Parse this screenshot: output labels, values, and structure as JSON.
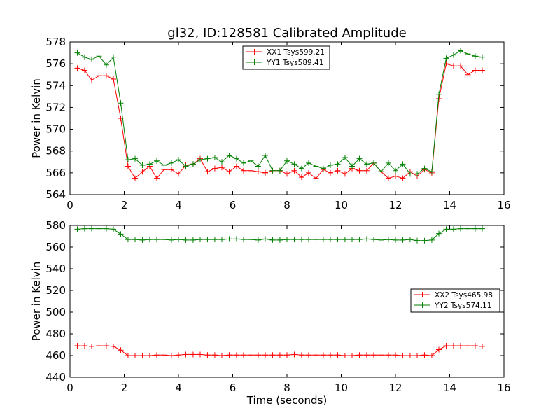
{
  "title": "gl32, ID:128581 Calibrated Amplitude",
  "colors": {
    "red": "#ff0000",
    "green": "#008000"
  },
  "chart_data": [
    {
      "type": "line",
      "ylabel": "Power in Kelvin",
      "xlabel": "",
      "xlim": [
        0,
        16
      ],
      "ylim": [
        564,
        578
      ],
      "xticks": [
        "0",
        "2",
        "4",
        "6",
        "8",
        "10",
        "12",
        "14",
        "16"
      ],
      "yticks": [
        "564",
        "566",
        "568",
        "570",
        "572",
        "574",
        "576",
        "578"
      ],
      "legend_position": "top-center",
      "x": [
        0.27,
        0.54,
        0.8,
        1.07,
        1.34,
        1.6,
        1.87,
        2.14,
        2.4,
        2.67,
        2.94,
        3.2,
        3.47,
        3.74,
        4.0,
        4.27,
        4.54,
        4.8,
        5.07,
        5.34,
        5.6,
        5.87,
        6.14,
        6.4,
        6.67,
        6.94,
        7.2,
        7.47,
        7.74,
        8.0,
        8.27,
        8.54,
        8.8,
        9.07,
        9.34,
        9.6,
        9.87,
        10.14,
        10.4,
        10.67,
        10.94,
        11.2,
        11.47,
        11.74,
        12.0,
        12.27,
        12.54,
        12.8,
        13.07,
        13.34,
        13.6,
        13.87,
        14.14,
        14.4,
        14.67,
        14.94,
        15.2
      ],
      "series": [
        {
          "name": "XX1 Tsys599.21",
          "color": "#ff0000",
          "values": [
            575.6,
            575.4,
            574.5,
            574.9,
            574.9,
            574.6,
            571.0,
            566.6,
            565.5,
            566.1,
            566.6,
            565.5,
            566.3,
            566.3,
            565.9,
            566.7,
            566.8,
            567.3,
            566.1,
            566.4,
            566.5,
            566.1,
            566.6,
            566.2,
            566.2,
            566.1,
            566.0,
            566.2,
            566.2,
            565.9,
            566.2,
            565.6,
            566.0,
            565.5,
            566.3,
            566.0,
            566.2,
            565.9,
            566.4,
            566.2,
            566.2,
            566.9,
            566.1,
            565.5,
            565.7,
            565.5,
            566.1,
            565.7,
            566.3,
            566.0,
            572.8,
            576.0,
            575.8,
            575.8,
            575.0,
            575.4,
            575.4
          ]
        },
        {
          "name": "YY1 Tsys589.41",
          "color": "#008000",
          "values": [
            577.0,
            576.6,
            576.4,
            576.7,
            575.9,
            576.6,
            572.4,
            567.2,
            567.3,
            566.7,
            566.8,
            567.1,
            566.7,
            566.9,
            567.2,
            566.6,
            566.8,
            567.2,
            567.3,
            567.4,
            567.0,
            567.6,
            567.3,
            566.9,
            567.1,
            566.6,
            567.6,
            566.2,
            566.2,
            567.1,
            566.8,
            566.4,
            566.9,
            566.6,
            566.4,
            566.7,
            566.8,
            567.4,
            566.6,
            567.3,
            566.8,
            566.9,
            566.1,
            566.9,
            566.2,
            566.8,
            565.9,
            565.9,
            566.4,
            566.1,
            573.2,
            576.5,
            576.8,
            577.2,
            576.9,
            576.7,
            576.6
          ]
        }
      ]
    },
    {
      "type": "line",
      "ylabel": "Power in Kelvin",
      "xlabel": "Time (seconds)",
      "xlim": [
        0,
        16
      ],
      "ylim": [
        440,
        580
      ],
      "xticks": [
        "0",
        "2",
        "4",
        "6",
        "8",
        "10",
        "12",
        "14",
        "16"
      ],
      "yticks": [
        "440",
        "460",
        "480",
        "500",
        "520",
        "540",
        "560",
        "580"
      ],
      "legend_position": "center-right",
      "x": [
        0.27,
        0.54,
        0.8,
        1.07,
        1.34,
        1.6,
        1.87,
        2.14,
        2.4,
        2.67,
        2.94,
        3.2,
        3.47,
        3.74,
        4.0,
        4.27,
        4.54,
        4.8,
        5.07,
        5.34,
        5.6,
        5.87,
        6.14,
        6.4,
        6.67,
        6.94,
        7.2,
        7.47,
        7.74,
        8.0,
        8.27,
        8.54,
        8.8,
        9.07,
        9.34,
        9.6,
        9.87,
        10.14,
        10.4,
        10.67,
        10.94,
        11.2,
        11.47,
        11.74,
        12.0,
        12.27,
        12.54,
        12.8,
        13.07,
        13.34,
        13.6,
        13.87,
        14.14,
        14.4,
        14.67,
        14.94,
        15.2
      ],
      "series": [
        {
          "name": "XX2 Tsys465.98",
          "color": "#ff0000",
          "values": [
            469,
            469,
            468.5,
            469,
            469,
            468.5,
            465,
            460,
            460,
            460,
            460,
            460.5,
            460.5,
            460,
            460.5,
            461,
            461,
            461,
            460.5,
            460.5,
            460,
            460.5,
            460.5,
            460.5,
            460.5,
            460.5,
            460.5,
            460.5,
            460.5,
            460.5,
            461,
            460.5,
            460.5,
            460.5,
            460.5,
            460.5,
            460.5,
            460,
            460,
            460.5,
            460.5,
            460.5,
            460.5,
            460.5,
            460.5,
            460,
            460,
            460,
            460.5,
            460,
            465.5,
            469,
            469,
            469,
            469,
            469,
            468.5
          ]
        },
        {
          "name": "YY2 Tsys574.11",
          "color": "#008000",
          "values": [
            576.5,
            577,
            577,
            577,
            577,
            576.5,
            572,
            567,
            567,
            566.5,
            567,
            567,
            567,
            566.5,
            567,
            566.5,
            566.5,
            567,
            567,
            567,
            567,
            567.5,
            567.5,
            567,
            567,
            566.5,
            567.5,
            566.5,
            566.5,
            567,
            567,
            567,
            567,
            567,
            567,
            567,
            567,
            567,
            567,
            567,
            567.5,
            567,
            566.5,
            567,
            566.5,
            566.5,
            567,
            566,
            566,
            566.5,
            572.5,
            576.5,
            576.5,
            577,
            577,
            577,
            577
          ]
        }
      ]
    }
  ]
}
